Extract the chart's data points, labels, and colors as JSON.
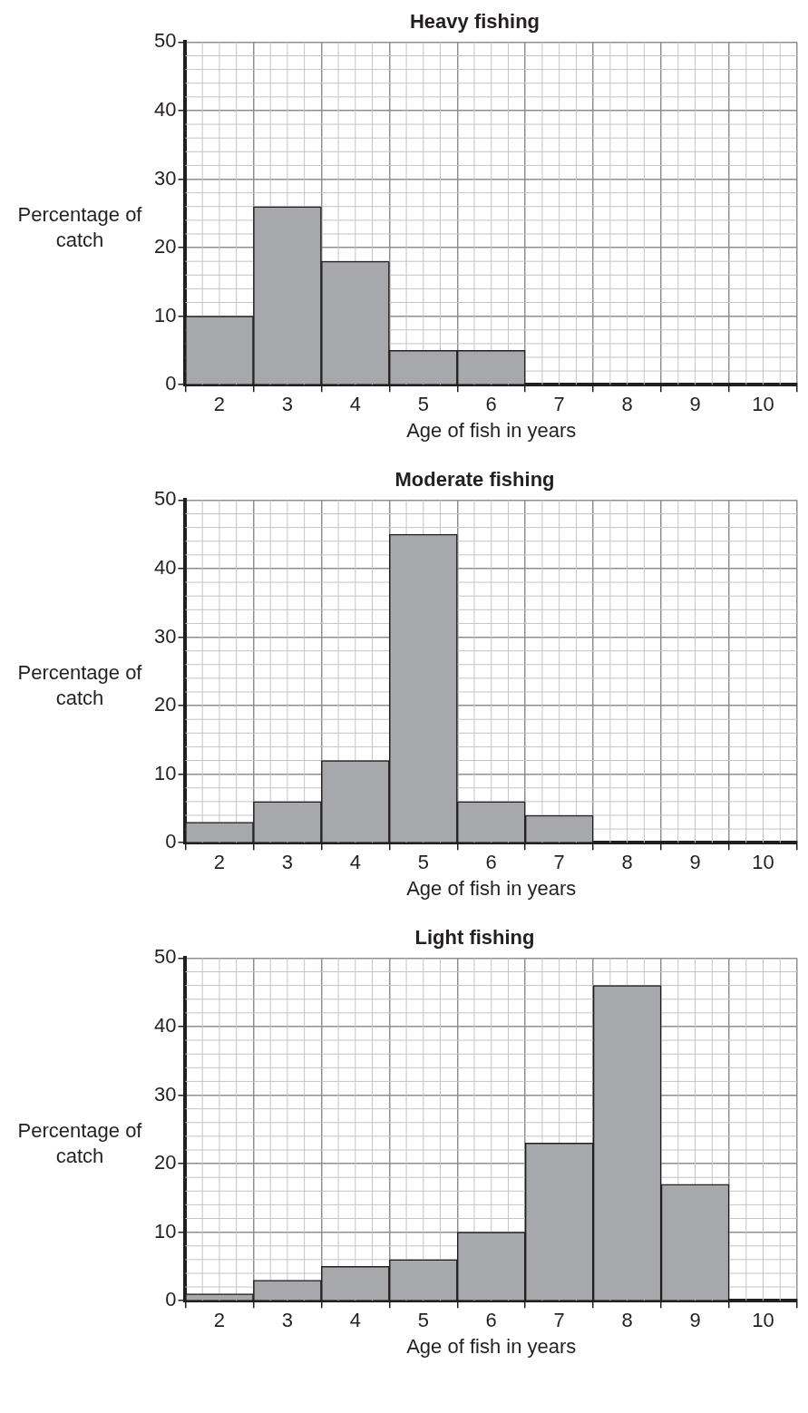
{
  "chart_data": [
    {
      "type": "bar",
      "title": "Heavy fishing",
      "xlabel": "Age of fish in years",
      "ylabel": "Percentage of catch",
      "categories": [
        "2",
        "3",
        "4",
        "5",
        "6",
        "7",
        "8",
        "9",
        "10"
      ],
      "values": [
        10,
        26,
        18,
        5,
        5,
        0,
        0,
        0,
        0
      ],
      "color": "#a7a8ab",
      "ylim": [
        0,
        50
      ],
      "yticks": [
        0,
        10,
        20,
        30,
        40,
        50
      ],
      "grid": true
    },
    {
      "type": "bar",
      "title": "Moderate fishing",
      "xlabel": "Age of fish in years",
      "ylabel": "Percentage of catch",
      "categories": [
        "2",
        "3",
        "4",
        "5",
        "6",
        "7",
        "8",
        "9",
        "10"
      ],
      "values": [
        3,
        6,
        12,
        45,
        6,
        4,
        0,
        0,
        0
      ],
      "color": "#a7a8ab",
      "ylim": [
        0,
        50
      ],
      "yticks": [
        0,
        10,
        20,
        30,
        40,
        50
      ],
      "grid": true
    },
    {
      "type": "bar",
      "title": "Light fishing",
      "xlabel": "Age of fish in years",
      "ylabel": "Percentage of catch",
      "categories": [
        "2",
        "3",
        "4",
        "5",
        "6",
        "7",
        "8",
        "9",
        "10"
      ],
      "values": [
        1,
        3,
        5,
        6,
        10,
        23,
        46,
        17,
        0
      ],
      "color": "#a7a8ab",
      "ylim": [
        0,
        50
      ],
      "yticks": [
        0,
        10,
        20,
        30,
        40,
        50
      ],
      "grid": true
    }
  ]
}
